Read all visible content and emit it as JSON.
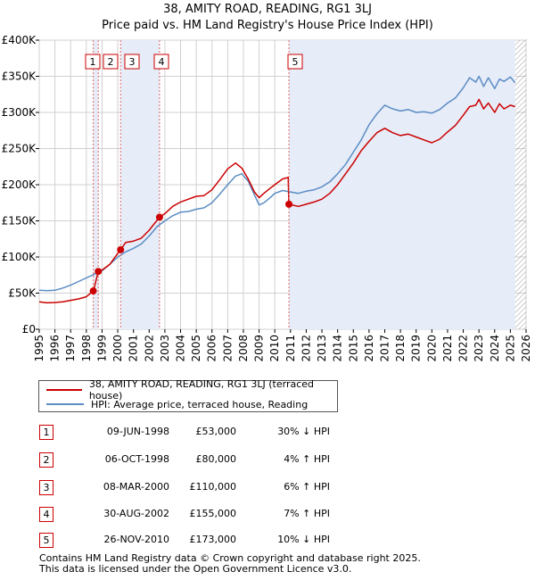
{
  "chart_data": {
    "type": "line",
    "title": "38, AMITY ROAD, READING, RG1 3LJ",
    "subtitle": "Price paid vs. HM Land Registry's House Price Index (HPI)",
    "xlabel": "",
    "ylabel": "",
    "xlim": [
      1995.0,
      2026.0
    ],
    "ylim": [
      0,
      400000
    ],
    "x_ticks": [
      "1995",
      "1996",
      "1997",
      "1998",
      "1999",
      "2000",
      "2001",
      "2002",
      "2003",
      "2004",
      "2005",
      "2006",
      "2007",
      "2008",
      "2009",
      "2010",
      "2011",
      "2012",
      "2013",
      "2014",
      "2015",
      "2016",
      "2017",
      "2018",
      "2019",
      "2020",
      "2021",
      "2022",
      "2023",
      "2024",
      "2025",
      "2026"
    ],
    "y_ticks": [
      {
        "value": 0,
        "label": "£0"
      },
      {
        "value": 50000,
        "label": "£50K"
      },
      {
        "value": 100000,
        "label": "£100K"
      },
      {
        "value": 150000,
        "label": "£150K"
      },
      {
        "value": 200000,
        "label": "£200K"
      },
      {
        "value": 250000,
        "label": "£250K"
      },
      {
        "value": 300000,
        "label": "£300K"
      },
      {
        "value": 350000,
        "label": "£350K"
      },
      {
        "value": 400000,
        "label": "£400K"
      }
    ],
    "grid": true,
    "shaded_spans": [
      [
        1998.44,
        1998.76
      ],
      [
        2000.18,
        2002.66
      ],
      [
        2010.9,
        2025.3
      ]
    ],
    "future_hatch_from": 2025.3,
    "series": [
      {
        "name": "38, AMITY ROAD, READING, RG1 3LJ (terraced house)",
        "color": "#cc0000",
        "x": [
          1995.0,
          1995.5,
          1996.0,
          1996.5,
          1997.0,
          1997.5,
          1998.0,
          1998.44,
          1998.45,
          1998.76,
          1999.0,
          1999.5,
          2000.0,
          2000.18,
          2000.5,
          2001.0,
          2001.5,
          2002.0,
          2002.66,
          2003.0,
          2003.5,
          2004.0,
          2004.5,
          2005.0,
          2005.5,
          2006.0,
          2006.5,
          2007.0,
          2007.5,
          2007.9,
          2008.3,
          2008.7,
          2009.0,
          2009.3,
          2009.7,
          2010.0,
          2010.5,
          2010.85,
          2010.9,
          2011.5,
          2012.0,
          2012.5,
          2013.0,
          2013.5,
          2014.0,
          2014.5,
          2015.0,
          2015.5,
          2016.0,
          2016.5,
          2017.0,
          2017.5,
          2018.0,
          2018.5,
          2019.0,
          2019.5,
          2020.0,
          2020.5,
          2021.0,
          2021.5,
          2022.0,
          2022.4,
          2022.8,
          2023.0,
          2023.3,
          2023.6,
          2024.0,
          2024.3,
          2024.6,
          2025.0,
          2025.3
        ],
        "values": [
          38000,
          36500,
          37000,
          38000,
          40000,
          42000,
          45000,
          53000,
          53000,
          80000,
          82000,
          90000,
          105000,
          110000,
          120000,
          122000,
          126000,
          137000,
          155000,
          160000,
          170000,
          176000,
          180000,
          184000,
          185000,
          193000,
          207000,
          222000,
          230000,
          223000,
          208000,
          190000,
          182000,
          188000,
          195000,
          200000,
          208000,
          210000,
          173000,
          170000,
          173000,
          176000,
          180000,
          188000,
          200000,
          215000,
          230000,
          247000,
          260000,
          272000,
          278000,
          272000,
          268000,
          270000,
          266000,
          262000,
          258000,
          263000,
          273000,
          282000,
          296000,
          308000,
          310000,
          318000,
          305000,
          313000,
          300000,
          312000,
          305000,
          310000,
          308000
        ]
      },
      {
        "name": "HPI: Average price, terraced house, Reading",
        "color": "#5b8cc4",
        "x": [
          1995.0,
          1995.5,
          1996.0,
          1996.5,
          1997.0,
          1997.5,
          1998.0,
          1998.5,
          1999.0,
          1999.5,
          2000.0,
          2000.5,
          2001.0,
          2001.5,
          2002.0,
          2002.5,
          2003.0,
          2003.5,
          2004.0,
          2004.5,
          2005.0,
          2005.5,
          2006.0,
          2006.5,
          2007.0,
          2007.5,
          2007.9,
          2008.3,
          2008.7,
          2009.0,
          2009.3,
          2009.7,
          2010.0,
          2010.5,
          2011.0,
          2011.5,
          2012.0,
          2012.5,
          2013.0,
          2013.5,
          2014.0,
          2014.5,
          2015.0,
          2015.5,
          2016.0,
          2016.5,
          2017.0,
          2017.5,
          2018.0,
          2018.5,
          2019.0,
          2019.5,
          2020.0,
          2020.5,
          2021.0,
          2021.5,
          2022.0,
          2022.4,
          2022.8,
          2023.0,
          2023.3,
          2023.6,
          2024.0,
          2024.3,
          2024.6,
          2025.0,
          2025.3
        ],
        "values": [
          54000,
          53500,
          54000,
          57000,
          61000,
          66000,
          71000,
          76000,
          81000,
          90000,
          100000,
          107000,
          112000,
          118000,
          129000,
          142000,
          150000,
          157000,
          162000,
          163000,
          166000,
          168000,
          175000,
          187000,
          200000,
          212000,
          215000,
          205000,
          186000,
          172000,
          175000,
          182000,
          188000,
          192000,
          190000,
          188000,
          191000,
          193000,
          197000,
          204000,
          215000,
          228000,
          245000,
          262000,
          283000,
          298000,
          310000,
          305000,
          302000,
          304000,
          300000,
          301000,
          299000,
          304000,
          313000,
          320000,
          334000,
          348000,
          342000,
          350000,
          336000,
          348000,
          333000,
          346000,
          343000,
          349000,
          341000
        ]
      }
    ],
    "sale_markers": [
      {
        "label": "1",
        "x": 1998.44,
        "y": 53000
      },
      {
        "label": "2",
        "x": 1998.76,
        "y": 80000
      },
      {
        "label": "3",
        "x": 2000.18,
        "y": 110000
      },
      {
        "label": "4",
        "x": 2002.66,
        "y": 155000
      },
      {
        "label": "5",
        "x": 2010.9,
        "y": 173000
      }
    ]
  },
  "legend": {
    "items": [
      {
        "label": "38, AMITY ROAD, READING, RG1 3LJ (terraced house)",
        "color": "#cc0000"
      },
      {
        "label": "HPI: Average price, terraced house, Reading",
        "color": "#5b8cc4"
      }
    ]
  },
  "sales_table": {
    "rows": [
      {
        "num": "1",
        "date": "09-JUN-1998",
        "price": "£53,000",
        "hpi": "30% ↓ HPI"
      },
      {
        "num": "2",
        "date": "06-OCT-1998",
        "price": "£80,000",
        "hpi": "4% ↑ HPI"
      },
      {
        "num": "3",
        "date": "08-MAR-2000",
        "price": "£110,000",
        "hpi": "6% ↑ HPI"
      },
      {
        "num": "4",
        "date": "30-AUG-2002",
        "price": "£155,000",
        "hpi": "7% ↑ HPI"
      },
      {
        "num": "5",
        "date": "26-NOV-2010",
        "price": "£173,000",
        "hpi": "10% ↓ HPI"
      }
    ]
  },
  "footer": {
    "line1": "Contains HM Land Registry data © Crown copyright and database right 2025.",
    "line2": "This data is licensed under the Open Government Licence v3.0."
  }
}
